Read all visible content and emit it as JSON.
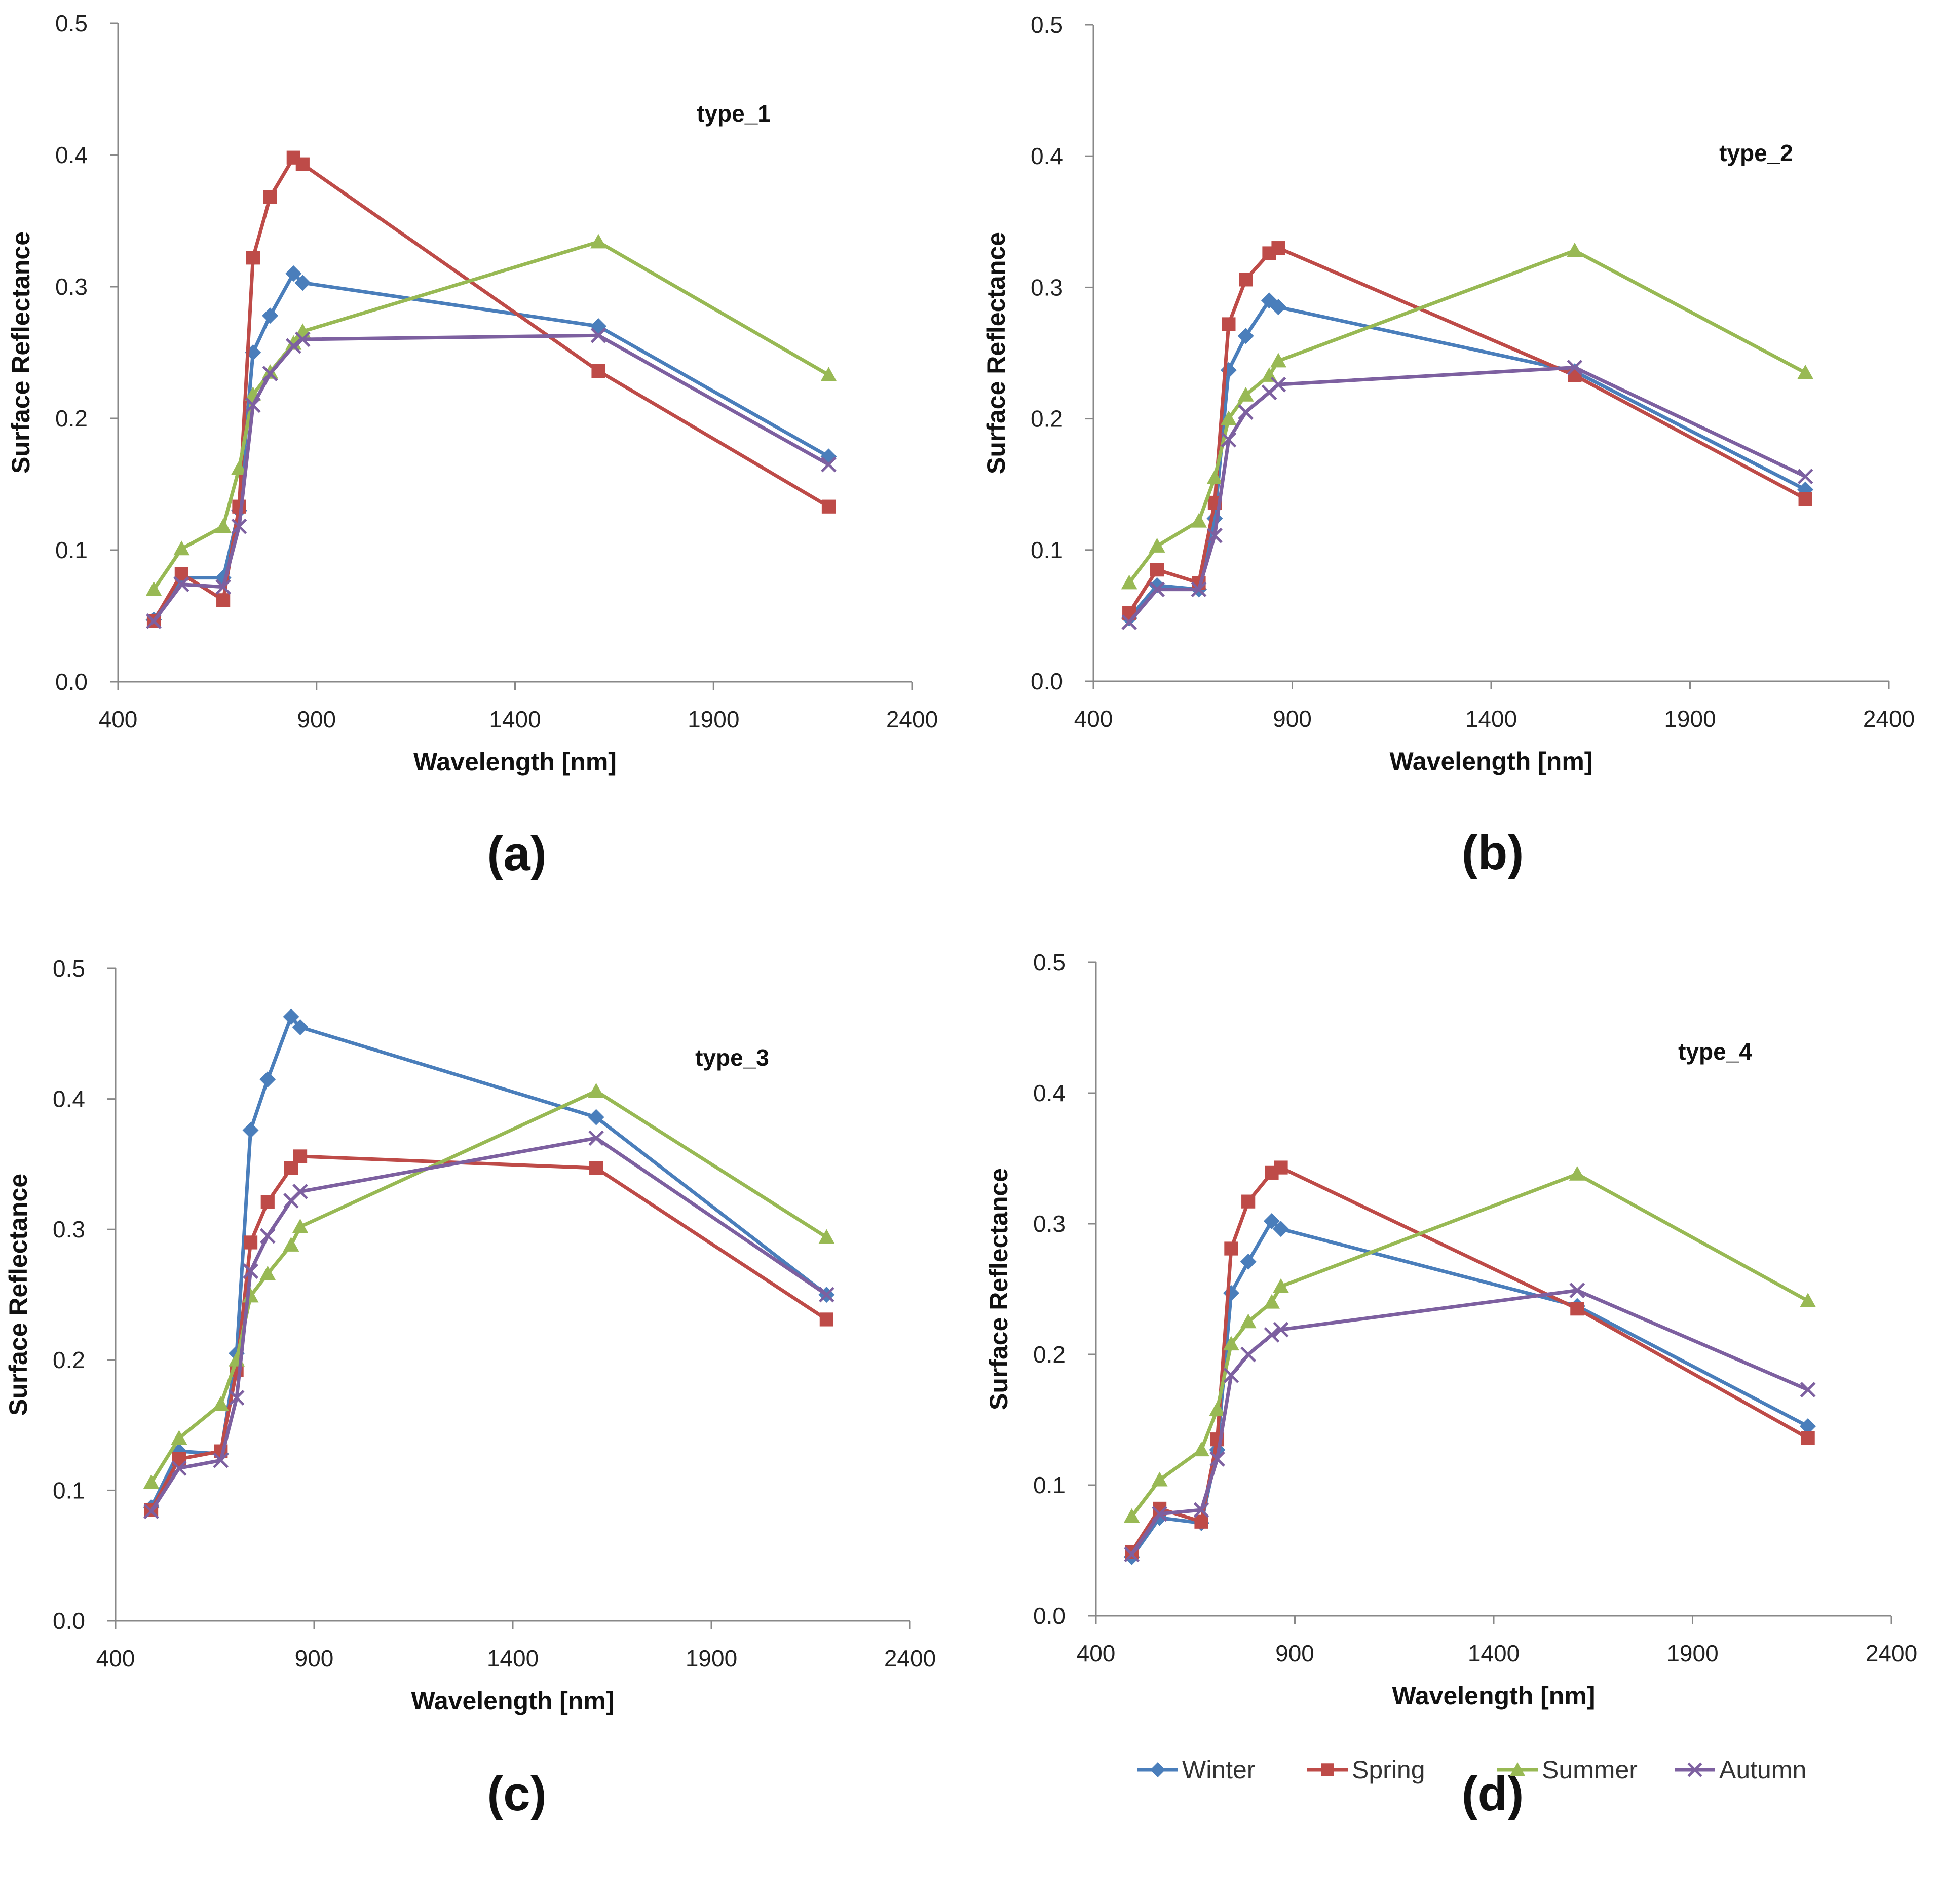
{
  "figure": {
    "series_names": [
      "Winter",
      "Spring",
      "Summer",
      "Autumn"
    ],
    "colors": {
      "Winter": "#4a7ebb",
      "Spring": "#be4b48",
      "Summer": "#98b954",
      "Autumn": "#7d60a0"
    },
    "markers": {
      "Winter": "diamond",
      "Spring": "square",
      "Summer": "triangle",
      "Autumn": "x"
    },
    "legend": {
      "position": "below-panel-d",
      "items": [
        {
          "name": "Winter",
          "marker": "diamond"
        },
        {
          "name": "Spring",
          "marker": "square"
        },
        {
          "name": "Summer",
          "marker": "triangle"
        },
        {
          "name": "Autumn",
          "marker": "x"
        }
      ]
    }
  },
  "chart_data": [
    {
      "type": "line",
      "panel_label": "(a)",
      "annotation": "type_1",
      "xlabel": "Wavelength [nm]",
      "ylabel": "Surface Reflectance",
      "xlim": [
        400,
        2400
      ],
      "ylim": [
        0,
        0.5
      ],
      "xticks": [
        "400",
        "900",
        "1400",
        "1900",
        "2400"
      ],
      "yticks": [
        "0.0",
        "0.1",
        "0.2",
        "0.3",
        "0.4",
        "0.5"
      ],
      "x": [
        490,
        560,
        665,
        705,
        740,
        783,
        842,
        865,
        1610,
        2190
      ],
      "series": [
        {
          "name": "Winter",
          "values": [
            0.047,
            0.079,
            0.079,
            0.13,
            0.25,
            0.278,
            0.31,
            0.303,
            0.27,
            0.171
          ]
        },
        {
          "name": "Spring",
          "values": [
            0.046,
            0.082,
            0.062,
            0.133,
            0.322,
            0.368,
            0.398,
            0.393,
            0.236,
            0.133
          ]
        },
        {
          "name": "Summer",
          "values": [
            0.07,
            0.101,
            0.118,
            0.162,
            0.218,
            0.235,
            0.257,
            0.266,
            0.334,
            0.233
          ]
        },
        {
          "name": "Autumn",
          "values": [
            0.046,
            0.074,
            0.072,
            0.118,
            0.21,
            0.234,
            0.255,
            0.26,
            0.263,
            0.165
          ]
        }
      ]
    },
    {
      "type": "line",
      "panel_label": "(b)",
      "annotation": "type_2",
      "xlabel": "Wavelength [nm]",
      "ylabel": "Surface Reflectance",
      "xlim": [
        400,
        2400
      ],
      "ylim": [
        0,
        0.5
      ],
      "xticks": [
        "400",
        "900",
        "1400",
        "1900",
        "2400"
      ],
      "yticks": [
        "0.0",
        "0.1",
        "0.2",
        "0.3",
        "0.4",
        "0.5"
      ],
      "x": [
        490,
        560,
        665,
        705,
        740,
        783,
        842,
        865,
        1610,
        2190
      ],
      "series": [
        {
          "name": "Winter",
          "values": [
            0.048,
            0.073,
            0.07,
            0.124,
            0.237,
            0.263,
            0.29,
            0.285,
            0.236,
            0.146
          ]
        },
        {
          "name": "Spring",
          "values": [
            0.052,
            0.085,
            0.075,
            0.136,
            0.272,
            0.306,
            0.326,
            0.33,
            0.233,
            0.139
          ]
        },
        {
          "name": "Summer",
          "values": [
            0.075,
            0.103,
            0.122,
            0.155,
            0.2,
            0.218,
            0.233,
            0.244,
            0.328,
            0.235
          ]
        },
        {
          "name": "Autumn",
          "values": [
            0.045,
            0.07,
            0.07,
            0.111,
            0.184,
            0.205,
            0.22,
            0.226,
            0.239,
            0.156
          ]
        }
      ]
    },
    {
      "type": "line",
      "panel_label": "(c)",
      "annotation": "type_3",
      "xlabel": "Wavelength [nm]",
      "ylabel": "Surface Reflectance",
      "xlim": [
        400,
        2400
      ],
      "ylim": [
        0,
        0.5
      ],
      "xticks": [
        "400",
        "900",
        "1400",
        "1900",
        "2400"
      ],
      "yticks": [
        "0.0",
        "0.1",
        "0.2",
        "0.3",
        "0.4",
        "0.5"
      ],
      "x": [
        490,
        560,
        665,
        705,
        740,
        783,
        842,
        865,
        1610,
        2190
      ],
      "series": [
        {
          "name": "Winter",
          "values": [
            0.087,
            0.13,
            0.128,
            0.205,
            0.376,
            0.415,
            0.463,
            0.455,
            0.386,
            0.25
          ]
        },
        {
          "name": "Spring",
          "values": [
            0.085,
            0.124,
            0.13,
            0.192,
            0.29,
            0.321,
            0.347,
            0.356,
            0.347,
            0.231
          ]
        },
        {
          "name": "Summer",
          "values": [
            0.106,
            0.14,
            0.166,
            0.2,
            0.249,
            0.266,
            0.288,
            0.302,
            0.406,
            0.294
          ]
        },
        {
          "name": "Autumn",
          "values": [
            0.084,
            0.117,
            0.123,
            0.171,
            0.268,
            0.295,
            0.322,
            0.329,
            0.37,
            0.25
          ]
        }
      ]
    },
    {
      "type": "line",
      "panel_label": "(d)",
      "annotation": "type_4",
      "xlabel": "Wavelength [nm]",
      "ylabel": "Surface Reflectance",
      "xlim": [
        400,
        2400
      ],
      "ylim": [
        0,
        0.5
      ],
      "xticks": [
        "400",
        "900",
        "1400",
        "1900",
        "2400"
      ],
      "yticks": [
        "0.0",
        "0.1",
        "0.2",
        "0.3",
        "0.4",
        "0.5"
      ],
      "x": [
        490,
        560,
        665,
        705,
        740,
        783,
        842,
        865,
        1610,
        2190
      ],
      "series": [
        {
          "name": "Winter",
          "values": [
            0.045,
            0.075,
            0.071,
            0.127,
            0.247,
            0.271,
            0.302,
            0.296,
            0.237,
            0.145
          ]
        },
        {
          "name": "Spring",
          "values": [
            0.049,
            0.082,
            0.072,
            0.135,
            0.281,
            0.317,
            0.339,
            0.343,
            0.235,
            0.136
          ]
        },
        {
          "name": "Summer",
          "values": [
            0.076,
            0.104,
            0.127,
            0.158,
            0.208,
            0.225,
            0.24,
            0.252,
            0.338,
            0.241
          ]
        },
        {
          "name": "Autumn",
          "values": [
            0.047,
            0.078,
            0.081,
            0.12,
            0.184,
            0.2,
            0.215,
            0.219,
            0.249,
            0.173
          ]
        }
      ]
    }
  ]
}
